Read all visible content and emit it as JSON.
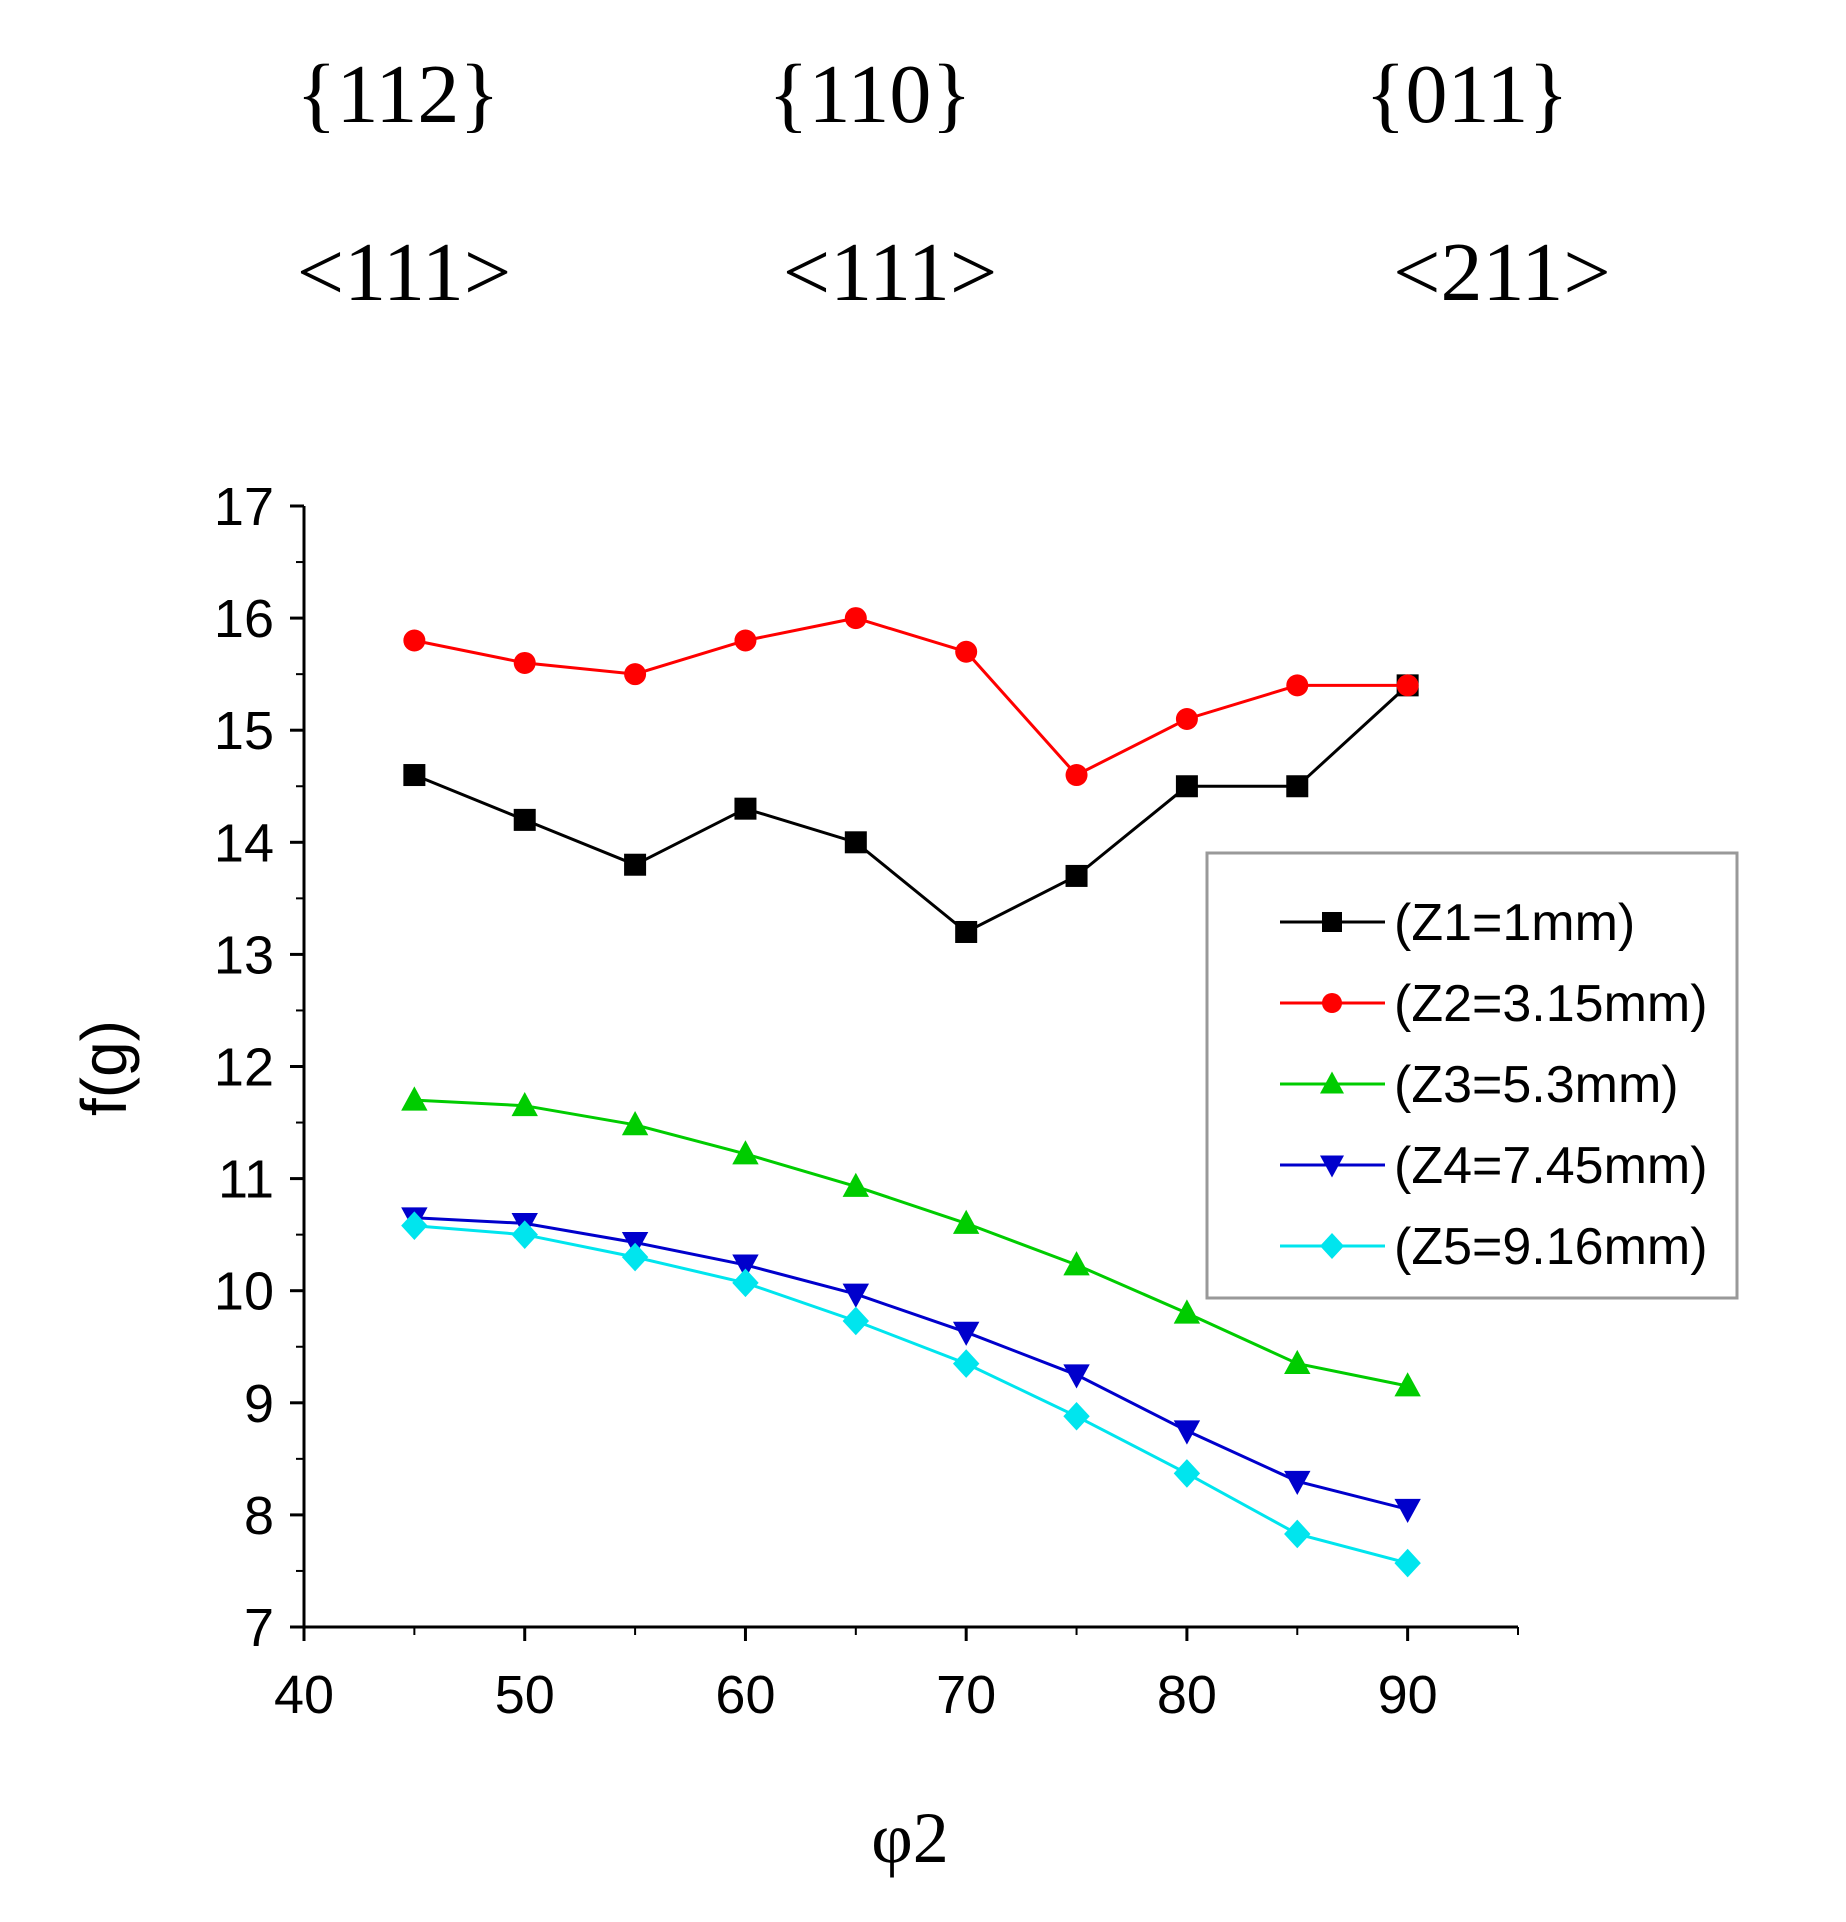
{
  "annotations": {
    "planes": [
      "{112}",
      "{110}",
      "{011}"
    ],
    "directions": [
      "<111>",
      "<111>",
      "<211>"
    ]
  },
  "chart_data": {
    "type": "line",
    "title": "",
    "xlabel": "φ2",
    "ylabel": "f(g)",
    "xlim": [
      40,
      95
    ],
    "ylim": [
      7,
      17
    ],
    "xticks": [
      40,
      50,
      60,
      70,
      80,
      90
    ],
    "yticks": [
      7,
      8,
      9,
      10,
      11,
      12,
      13,
      14,
      15,
      16,
      17
    ],
    "grid": false,
    "legend_position": "right",
    "x": [
      45,
      50,
      55,
      60,
      65,
      70,
      75,
      80,
      85,
      90
    ],
    "series": [
      {
        "name": "(Z1=1mm)",
        "color": "#000000",
        "marker": "square",
        "values": [
          14.6,
          14.2,
          13.8,
          14.3,
          14.0,
          13.2,
          13.7,
          14.5,
          14.5,
          15.4
        ]
      },
      {
        "name": "(Z2=3.15mm)",
        "color": "#ff0000",
        "marker": "circle",
        "values": [
          15.8,
          15.6,
          15.5,
          15.8,
          16.0,
          15.7,
          14.6,
          15.1,
          15.4,
          15.4
        ]
      },
      {
        "name": "(Z3=5.3mm)",
        "color": "#00cc00",
        "marker": "triangle-up",
        "values": [
          11.7,
          11.65,
          11.48,
          11.22,
          10.93,
          10.6,
          10.23,
          9.8,
          9.35,
          9.15
        ]
      },
      {
        "name": "(Z4=7.45mm)",
        "color": "#0000cc",
        "marker": "triangle-down",
        "values": [
          10.65,
          10.6,
          10.43,
          10.23,
          9.97,
          9.63,
          9.25,
          8.75,
          8.3,
          8.05
        ]
      },
      {
        "name": "(Z5=9.16mm)",
        "color": "#00e5ee",
        "marker": "diamond",
        "values": [
          10.58,
          10.5,
          10.3,
          10.07,
          9.73,
          9.35,
          8.88,
          8.37,
          7.83,
          7.57
        ]
      }
    ]
  }
}
